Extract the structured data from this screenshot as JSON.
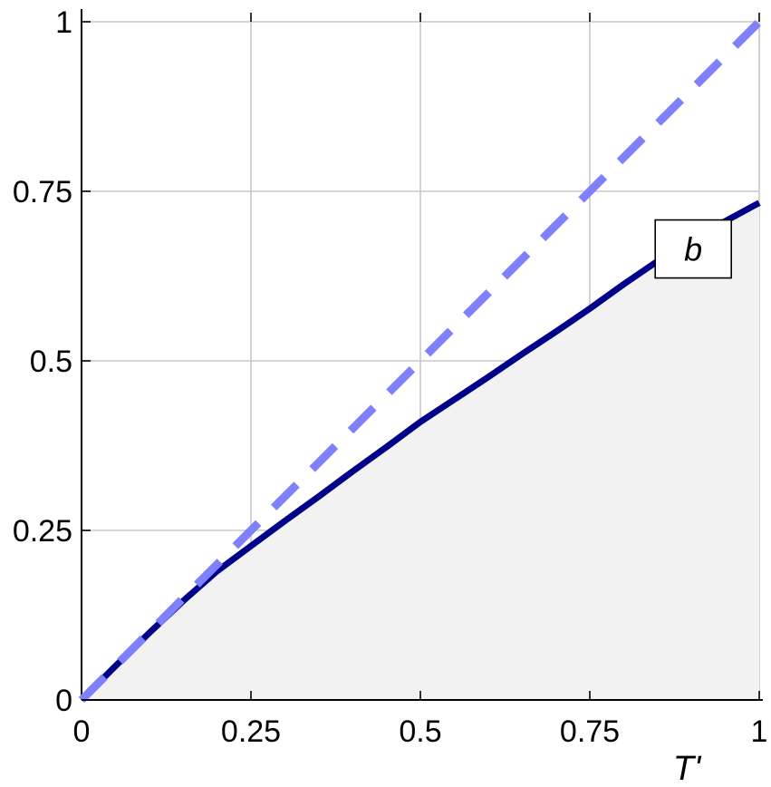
{
  "chart_data": {
    "type": "line",
    "xlabel": "T'",
    "ylabel": "",
    "xlim": [
      0,
      1
    ],
    "ylim": [
      0,
      1
    ],
    "grid": true,
    "x_ticks": [
      "0",
      "0.25",
      "0.5",
      "0.75",
      "1"
    ],
    "y_ticks": [
      "0",
      "0.25",
      "0.5",
      "0.75",
      "1"
    ],
    "series": [
      {
        "style": "solid",
        "color": "#00008b",
        "fill_below": true,
        "fill_color": "#f2f2f2",
        "x": [
          0,
          0.05,
          0.1,
          0.15,
          0.2,
          0.25,
          0.3,
          0.35,
          0.4,
          0.45,
          0.5,
          0.55,
          0.6,
          0.65,
          0.7,
          0.75,
          0.8,
          0.85,
          0.9,
          0.95,
          1.0
        ],
        "y": [
          0,
          0.05,
          0.099,
          0.146,
          0.19,
          0.227,
          0.264,
          0.3,
          0.337,
          0.373,
          0.41,
          0.443,
          0.476,
          0.51,
          0.543,
          0.577,
          0.613,
          0.647,
          0.679,
          0.706,
          0.733
        ]
      },
      {
        "style": "dashed",
        "color": "#8080ff",
        "x": [
          0,
          1
        ],
        "y": [
          0,
          1
        ]
      }
    ],
    "annotations": [
      {
        "text": "b",
        "x": 0.9,
        "y": 0.665
      }
    ]
  }
}
